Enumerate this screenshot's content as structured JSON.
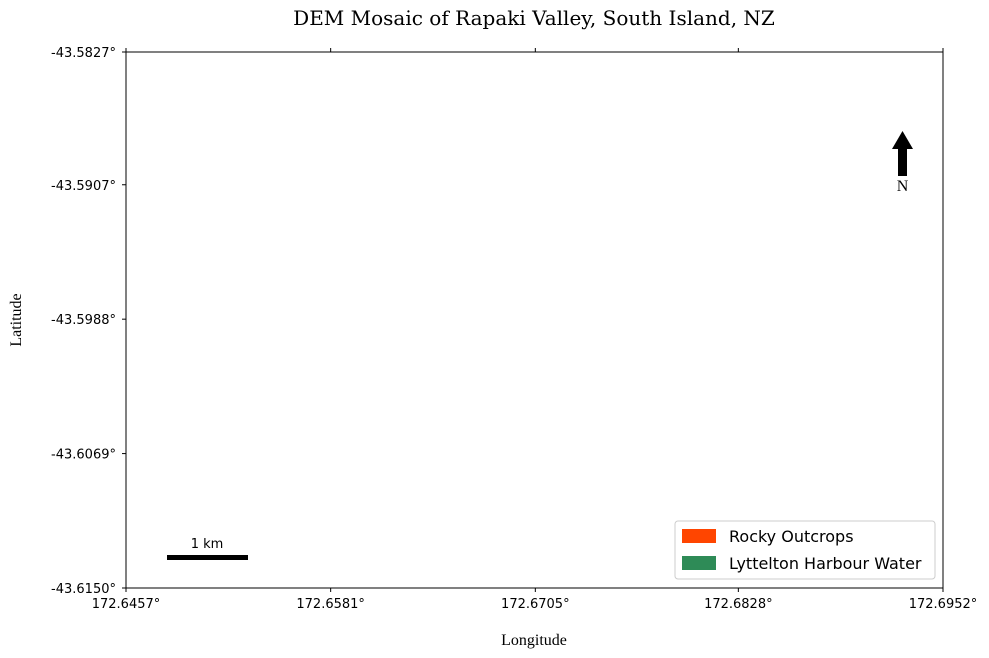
{
  "chart_data": {
    "type": "map",
    "title": "DEM Mosaic of Rapaki Valley, South Island, NZ",
    "xlabel": "Longitude",
    "ylabel": "Latitude",
    "xlim": [
      172.6457,
      172.6952
    ],
    "ylim": [
      -43.615,
      -43.5827
    ],
    "xticks": [
      {
        "value": 172.6457,
        "label": "172.6457°"
      },
      {
        "value": 172.6581,
        "label": "172.6581°"
      },
      {
        "value": 172.6705,
        "label": "172.6705°"
      },
      {
        "value": 172.6828,
        "label": "172.6828°"
      },
      {
        "value": 172.6952,
        "label": "172.6952°"
      }
    ],
    "yticks": [
      {
        "value": -43.5827,
        "label": "-43.5827°"
      },
      {
        "value": -43.5907,
        "label": "-43.5907°"
      },
      {
        "value": -43.5988,
        "label": "-43.5988°"
      },
      {
        "value": -43.6069,
        "label": "-43.6069°"
      },
      {
        "value": -43.615,
        "label": "-43.6150°"
      }
    ],
    "scale_bar": {
      "label": "1 km"
    },
    "north_arrow": {
      "label": "N"
    },
    "legend": {
      "placement": "lower-right",
      "entries": [
        {
          "label": "Rocky Outcrops",
          "color": "#FF4500"
        },
        {
          "label": "Lyttelton Harbour Water",
          "color": "#2E8B57"
        }
      ]
    }
  }
}
